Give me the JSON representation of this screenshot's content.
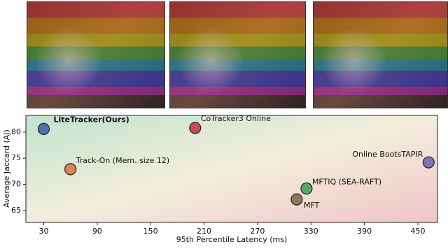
{
  "chart_data": {
    "type": "scatter",
    "xlabel": "95th Percentile Latency (ms)",
    "ylabel": "Average Jaccard (AJ)",
    "xlim": [
      10,
      472
    ],
    "ylim": [
      62.7,
      83.2
    ],
    "xticks": [
      30,
      90,
      150,
      210,
      270,
      330,
      390,
      450
    ],
    "yticks": [
      65,
      70,
      75,
      80
    ],
    "points": [
      {
        "label": "LiteTracker(Ours)",
        "x": 30,
        "y": 80.6,
        "color": "#4c72b0",
        "bold": true
      },
      {
        "label": "CoTracker3 Online",
        "x": 200,
        "y": 80.8,
        "color": "#c44e52"
      },
      {
        "label": "Track-On (Mem. size 12)",
        "x": 60,
        "y": 72.9,
        "color": "#dd8452"
      },
      {
        "label": "MFTIQ (SEA-RAFT)",
        "x": 325,
        "y": 69.2,
        "color": "#55a868"
      },
      {
        "label": "MFT",
        "x": 314,
        "y": 67.1,
        "color": "#937860"
      },
      {
        "label": "Online BootsTAPIR",
        "x": 462,
        "y": 74.2,
        "color": "#8172b3"
      }
    ]
  }
}
